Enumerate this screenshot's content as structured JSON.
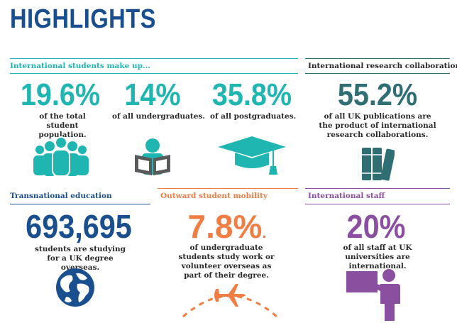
{
  "title": "HIGHLIGHTS",
  "colors": {
    "title": "#1a4f8f",
    "teal": "#1fb5b0",
    "dark_teal": "#2f6e72",
    "navy": "#1a4f8f",
    "orange": "#f07d43",
    "purple": "#8b4fa0",
    "icon_grey": "#595a5c"
  },
  "international_students": {
    "heading": "International students make up...",
    "stats": [
      {
        "value": "19.6%",
        "description": "of the total student population.",
        "icon": "group-of-people-icon"
      },
      {
        "value": "14%",
        "description": "of all undergraduates.",
        "icon": "person-reading-icon"
      },
      {
        "value": "35.8%",
        "description": "of all postgraduates.",
        "icon": "graduation-cap-icon"
      }
    ]
  },
  "research": {
    "heading": "International research collaborations",
    "value": "55.2%",
    "description": "of all UK publications are the product of international research collaborations.",
    "icon": "books-icon"
  },
  "transnational": {
    "heading": "Transnational education",
    "value": "693,695",
    "description": "students are studying for a UK degree overseas.",
    "icon": "globe-icon"
  },
  "mobility": {
    "heading": "Outward student mobility",
    "value": "7.8%",
    "value_suffix": ".",
    "description": "of undergraduate students study work or volunteer overseas as part of their degree.",
    "icon": "airplane-icon"
  },
  "staff": {
    "heading": "International staff",
    "value": "20%",
    "description": "of all staff at UK universities are international.",
    "icon": "presenter-at-board-icon"
  }
}
